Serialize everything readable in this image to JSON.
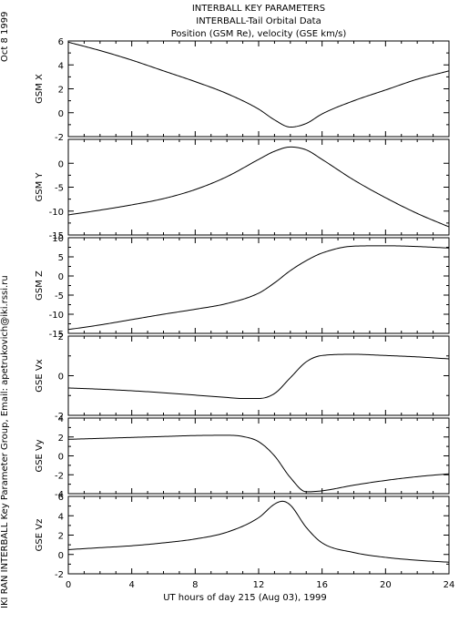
{
  "header": {
    "title": "INTERBALL KEY PARAMETERS",
    "subtitle": "INTERBALL-Tail Orbital Data",
    "caption": "Position (GSM Re), velocity (GSE km/s)"
  },
  "side_date": "Oct  8 1999",
  "side_credit": "IKI RAN INTERBALL Key Parameter Group, Email: apetrukovich@iki.rssi.ru",
  "chart_data": {
    "type": "line",
    "xlabel": "UT hours of day 215 (Aug 03), 1999",
    "xlim": [
      0,
      24
    ],
    "xticks": [
      0,
      4,
      8,
      12,
      16,
      20,
      24
    ],
    "grid": false,
    "panels": [
      {
        "ylabel": "GSM X",
        "ylim": [
          -2,
          6
        ],
        "yticks": [
          -2,
          0,
          2,
          4,
          6
        ],
        "x": [
          0,
          2,
          4,
          6,
          8,
          10,
          12,
          13,
          14,
          15,
          16,
          18,
          20,
          22,
          24
        ],
        "y": [
          5.9,
          5.2,
          4.4,
          3.5,
          2.6,
          1.6,
          0.3,
          -0.6,
          -1.2,
          -0.9,
          -0.1,
          1.0,
          1.9,
          2.8,
          3.5
        ]
      },
      {
        "ylabel": "GSM Y",
        "ylim": [
          -15,
          5
        ],
        "yticks": [
          -15,
          -10,
          -5,
          0
        ],
        "x": [
          0,
          2,
          4,
          6,
          8,
          10,
          12,
          13,
          14,
          15,
          16,
          18,
          20,
          22,
          24
        ],
        "y": [
          -10.8,
          -9.8,
          -8.7,
          -7.4,
          -5.5,
          -2.8,
          0.8,
          2.5,
          3.4,
          2.8,
          0.8,
          -3.5,
          -7.2,
          -10.5,
          -13.3
        ]
      },
      {
        "ylabel": "GSM Z",
        "ylim": [
          -15,
          10
        ],
        "yticks": [
          -15,
          -10,
          -5,
          0,
          5,
          10
        ],
        "x": [
          0,
          2,
          4,
          6,
          8,
          10,
          12,
          13,
          14,
          15,
          16,
          18,
          20,
          22,
          24
        ],
        "y": [
          -14.0,
          -12.8,
          -11.4,
          -10.0,
          -8.7,
          -7.2,
          -4.5,
          -1.8,
          1.4,
          4.0,
          6.0,
          7.8,
          7.9,
          7.7,
          7.3
        ]
      },
      {
        "ylabel": "GSE Vx",
        "ylim": [
          -2,
          2
        ],
        "yticks": [
          -2,
          0,
          2
        ],
        "x": [
          0,
          2,
          4,
          6,
          8,
          10,
          11,
          12,
          13,
          14,
          15,
          16,
          18,
          20,
          22,
          24
        ],
        "y": [
          -0.62,
          -0.68,
          -0.76,
          -0.86,
          -0.98,
          -1.1,
          -1.15,
          -1.15,
          -0.9,
          -0.1,
          0.7,
          1.02,
          1.08,
          1.02,
          0.95,
          0.85
        ]
      },
      {
        "ylabel": "GSE Vy",
        "ylim": [
          -4,
          4
        ],
        "yticks": [
          -4,
          -2,
          0,
          2,
          4
        ],
        "x": [
          0,
          2,
          4,
          6,
          8,
          10,
          11,
          12,
          13,
          14,
          15,
          16,
          18,
          20,
          22,
          24
        ],
        "y": [
          1.75,
          1.85,
          1.95,
          2.05,
          2.15,
          2.18,
          2.05,
          1.5,
          0.0,
          -2.3,
          -3.8,
          -3.7,
          -3.1,
          -2.6,
          -2.2,
          -1.9
        ]
      },
      {
        "ylabel": "GSE Vz",
        "ylim": [
          -2,
          6
        ],
        "yticks": [
          -2,
          0,
          2,
          4,
          6
        ],
        "x": [
          0,
          2,
          4,
          6,
          8,
          10,
          12,
          13,
          13.5,
          14,
          15,
          16,
          18,
          20,
          22,
          24
        ],
        "y": [
          0.5,
          0.7,
          0.9,
          1.2,
          1.6,
          2.3,
          3.8,
          5.2,
          5.5,
          5.1,
          2.8,
          1.2,
          0.2,
          -0.3,
          -0.6,
          -0.8
        ]
      }
    ]
  }
}
